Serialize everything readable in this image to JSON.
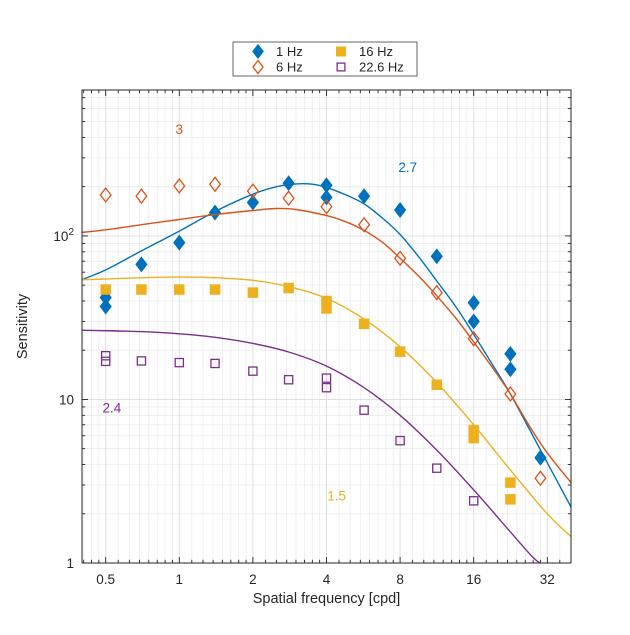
{
  "chart_data": {
    "type": "scatter",
    "title": "",
    "xlabel": "Spatial frequency [cpd]",
    "ylabel": "Sensitivity",
    "xscale": "log",
    "yscale": "log",
    "xlim": [
      0.4,
      40
    ],
    "ylim": [
      1,
      780
    ],
    "xticks": [
      0.5,
      1,
      2,
      4,
      8,
      16,
      32
    ],
    "xtick_labels": [
      "0.5",
      "1",
      "2",
      "4",
      "8",
      "16",
      "32"
    ],
    "yticks": [
      1,
      10,
      100
    ],
    "ytick_labels": [
      "1",
      "10",
      "10^2"
    ],
    "grid": true,
    "minor_grid": true,
    "legend_position": "top-center",
    "legend_columns": 2,
    "series": [
      {
        "name": "1 Hz",
        "color": "#0072BD",
        "marker": "diamond",
        "filled": true,
        "points": [
          [
            0.5,
            42
          ],
          [
            0.5,
            37
          ],
          [
            0.7,
            67
          ],
          [
            1,
            91
          ],
          [
            1.4,
            139
          ],
          [
            2,
            160
          ],
          [
            2.8,
            210
          ],
          [
            4,
            204
          ],
          [
            4,
            172
          ],
          [
            5.7,
            175
          ],
          [
            8,
            144
          ],
          [
            11.3,
            75
          ],
          [
            16,
            39
          ],
          [
            16,
            30
          ],
          [
            22.6,
            19
          ],
          [
            22.6,
            15.3
          ],
          [
            30,
            4.4
          ]
        ],
        "curve": [
          [
            0.4,
            54
          ],
          [
            0.5,
            62
          ],
          [
            0.7,
            81
          ],
          [
            1,
            107
          ],
          [
            1.4,
            141
          ],
          [
            2,
            180
          ],
          [
            2.5,
            200
          ],
          [
            3,
            208
          ],
          [
            3.5,
            207
          ],
          [
            4,
            198
          ],
          [
            4.8,
            178
          ],
          [
            5.7,
            157
          ],
          [
            6.8,
            128
          ],
          [
            8,
            102
          ],
          [
            9.5,
            75
          ],
          [
            11.3,
            53
          ],
          [
            13.5,
            37
          ],
          [
            16,
            25
          ],
          [
            19,
            16.5
          ],
          [
            22.6,
            10.8
          ],
          [
            27,
            6.6
          ],
          [
            32,
            4.1
          ],
          [
            40,
            2.2
          ]
        ],
        "annotation": {
          "text": "2.7",
          "x": 8.6,
          "y": 260
        }
      },
      {
        "name": "6 Hz",
        "color": "#D95319",
        "marker": "diamond",
        "filled": false,
        "points": [
          [
            0.5,
            178
          ],
          [
            0.7,
            175
          ],
          [
            1,
            202
          ],
          [
            1.4,
            207
          ],
          [
            2,
            188
          ],
          [
            2.8,
            170
          ],
          [
            4,
            151
          ],
          [
            5.7,
            117
          ],
          [
            8,
            73
          ],
          [
            11.3,
            45
          ],
          [
            16,
            23.5
          ],
          [
            22.6,
            10.8
          ],
          [
            30,
            3.3
          ]
        ],
        "curve": [
          [
            0.4,
            105
          ],
          [
            0.5,
            109
          ],
          [
            0.7,
            117
          ],
          [
            1,
            126
          ],
          [
            1.4,
            135
          ],
          [
            2,
            143
          ],
          [
            2.5,
            147
          ],
          [
            3,
            145
          ],
          [
            4,
            133
          ],
          [
            4.8,
            122
          ],
          [
            5.7,
            108
          ],
          [
            6.8,
            91
          ],
          [
            8,
            73
          ],
          [
            9.5,
            57
          ],
          [
            11.3,
            43
          ],
          [
            13.5,
            31.5
          ],
          [
            16,
            22.5
          ],
          [
            19,
            15.8
          ],
          [
            22.6,
            10.8
          ],
          [
            27,
            6.9
          ],
          [
            32,
            4.7
          ],
          [
            40,
            3.1
          ]
        ],
        "annotation": {
          "text": "3",
          "x": 1.0,
          "y": 445
        }
      },
      {
        "name": "16 Hz",
        "color": "#EDB120",
        "marker": "square",
        "filled": true,
        "points": [
          [
            0.5,
            47
          ],
          [
            0.7,
            47
          ],
          [
            1,
            47
          ],
          [
            1.4,
            47
          ],
          [
            2,
            45
          ],
          [
            2.8,
            48
          ],
          [
            4,
            40
          ],
          [
            4,
            36
          ],
          [
            5.7,
            29
          ],
          [
            8,
            19.6
          ],
          [
            11.3,
            12.3
          ],
          [
            16,
            6.5
          ],
          [
            16,
            5.8
          ],
          [
            22.6,
            3.1
          ],
          [
            22.6,
            2.45
          ]
        ],
        "curve": [
          [
            0.4,
            54
          ],
          [
            0.5,
            54.5
          ],
          [
            0.7,
            55.5
          ],
          [
            1,
            56
          ],
          [
            1.4,
            55.5
          ],
          [
            2,
            53.5
          ],
          [
            2.8,
            49
          ],
          [
            4,
            41.5
          ],
          [
            5.7,
            31
          ],
          [
            8,
            21
          ],
          [
            11.3,
            12.7
          ],
          [
            16,
            7
          ],
          [
            22.6,
            3.7
          ],
          [
            32,
            2.0
          ],
          [
            40,
            1.45
          ]
        ],
        "annotation": {
          "text": "1.5",
          "x": 4.4,
          "y": 2.55
        }
      },
      {
        "name": "22.6 Hz",
        "color": "#7E2F8E",
        "marker": "square",
        "filled": false,
        "points": [
          [
            0.5,
            18.5
          ],
          [
            0.5,
            17.1
          ],
          [
            0.7,
            17.2
          ],
          [
            1,
            16.8
          ],
          [
            1.4,
            16.6
          ],
          [
            2,
            14.9
          ],
          [
            2.8,
            13.2
          ],
          [
            4,
            13.5
          ],
          [
            4,
            11.8
          ],
          [
            5.7,
            8.6
          ],
          [
            8,
            5.6
          ],
          [
            11.3,
            3.8
          ],
          [
            16,
            2.4
          ]
        ],
        "curve": [
          [
            0.4,
            26.5
          ],
          [
            0.7,
            26
          ],
          [
            1,
            25.2
          ],
          [
            1.4,
            24
          ],
          [
            2,
            22
          ],
          [
            2.8,
            19.5
          ],
          [
            4,
            16
          ],
          [
            5.7,
            11.8
          ],
          [
            8,
            8
          ],
          [
            11.3,
            4.9
          ],
          [
            16,
            2.8
          ],
          [
            22.6,
            1.55
          ],
          [
            28,
            1.08
          ],
          [
            32,
            0.93
          ]
        ],
        "annotation": {
          "text": "2.4",
          "x": 0.53,
          "y": 8.8
        }
      }
    ],
    "style": {
      "axes_color": "#262626",
      "text_color": "#262626",
      "major_grid_color": "#dcdcdc",
      "minor_grid_color": "#ececec",
      "background": "#ffffff"
    }
  }
}
